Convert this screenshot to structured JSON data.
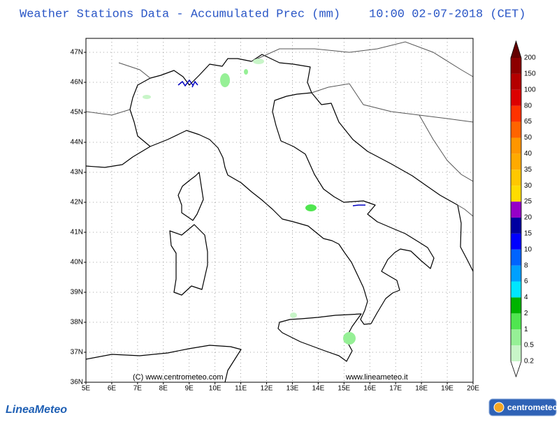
{
  "header": {
    "title": "Weather Stations Data - Accumulated Prec (mm)",
    "time": "10:00 02-07-2018 (CET)"
  },
  "map": {
    "lat_ticks": [
      "36N",
      "37N",
      "38N",
      "39N",
      "40N",
      "41N",
      "42N",
      "43N",
      "44N",
      "45N",
      "46N",
      "47N"
    ],
    "lon_ticks": [
      "5E",
      "6E",
      "7E",
      "8E",
      "9E",
      "10E",
      "11E",
      "12E",
      "13E",
      "14E",
      "15E",
      "16E",
      "17E",
      "18E",
      "19E",
      "20E"
    ],
    "credit_left": "(C) www.centrometeo.com",
    "credit_right": "www.lineameteo.it"
  },
  "legend": {
    "levels": [
      0.2,
      0.5,
      1,
      2,
      4,
      6,
      8,
      10,
      15,
      20,
      25,
      30,
      35,
      40,
      50,
      65,
      80,
      100,
      150,
      200
    ],
    "box_colors": [
      "#c8f5c8",
      "#96f096",
      "#50e650",
      "#00b400",
      "#00e6ff",
      "#00a0ff",
      "#0064ff",
      "#0000ff",
      "#0000a0",
      "#9600c8",
      "#ffdc00",
      "#ffc800",
      "#ffaa00",
      "#ff9600",
      "#ff6400",
      "#ff3200",
      "#dc0000",
      "#b40000",
      "#8c0000"
    ],
    "under_color": "#ffffff",
    "over_color": "#640000"
  },
  "logos": {
    "left": "LineaMeteo",
    "right": "centrometeo"
  }
}
